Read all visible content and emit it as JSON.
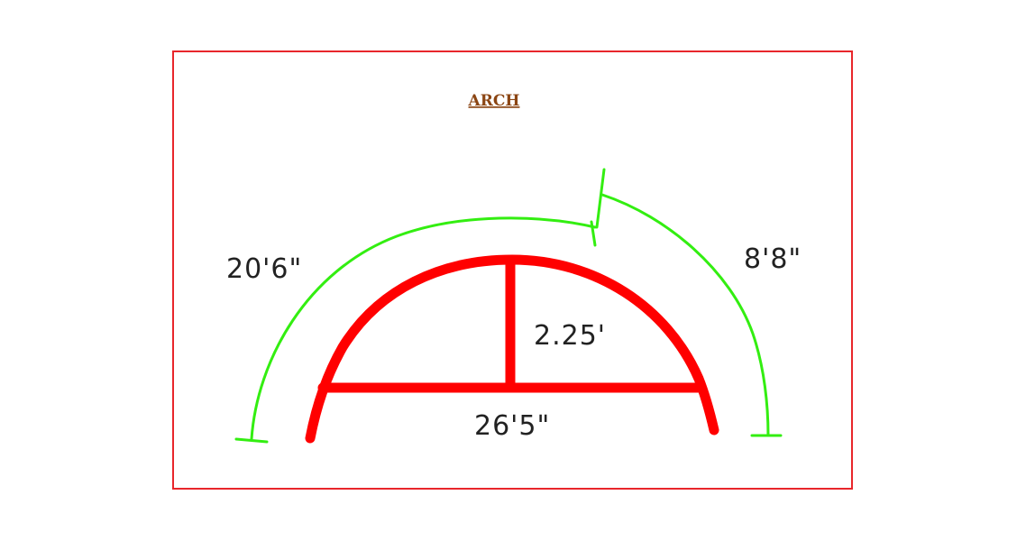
{
  "diagram": {
    "title": "ARCH",
    "labels": {
      "outer_arc_length": "20'6\"",
      "right_arc_length": "8'8\"",
      "rise": "2.25'",
      "span": "26'5\""
    }
  },
  "colors": {
    "frame": "#e8262b",
    "arch": "#ff0000",
    "dimension_lines": "#33ee11",
    "title": "#8b4513",
    "label_text": "#222222"
  }
}
